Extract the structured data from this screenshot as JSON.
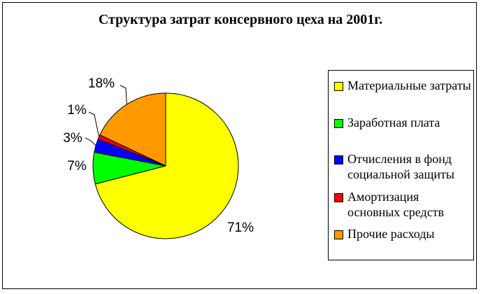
{
  "chart_data": {
    "type": "pie",
    "title": "Структура затрат консервного цеха на 2001г.",
    "slices": [
      {
        "label": "Материальные затраты",
        "value": 71,
        "value_label": "71%",
        "color": "#ffff00"
      },
      {
        "label": "Заработная плата",
        "value": 7,
        "value_label": "7%",
        "color": "#00ff00"
      },
      {
        "label": "Отчисления в фонд социальной защиты",
        "value": 3,
        "value_label": "3%",
        "color": "#0000ff"
      },
      {
        "label": "Амортизация основных средств",
        "value": 1,
        "value_label": "1%",
        "color": "#ff0000"
      },
      {
        "label": "Прочие расходы",
        "value": 18,
        "value_label": "18%",
        "color": "#ff9900"
      }
    ],
    "legend_placement": "right"
  }
}
